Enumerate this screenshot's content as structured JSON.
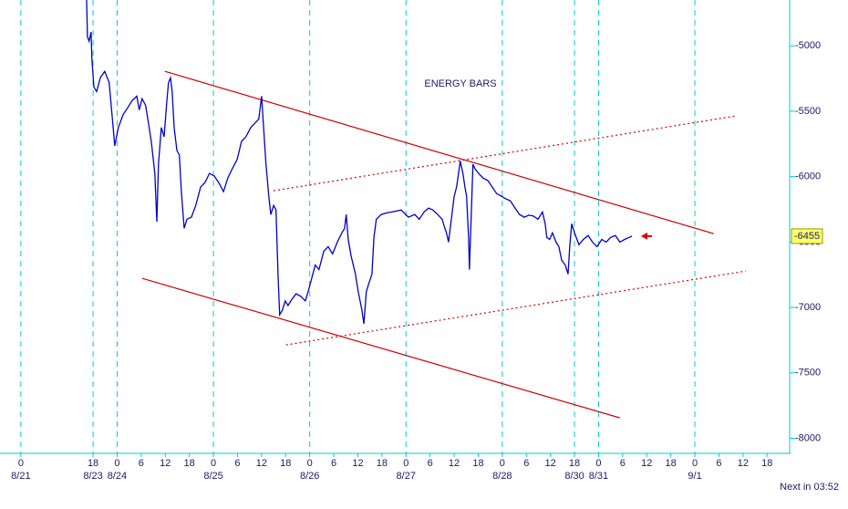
{
  "chart_data": {
    "type": "line",
    "title": "ENERGY BARS",
    "series": [
      {
        "color": "#0000cc",
        "x": [
          16.4,
          16.6,
          17.0,
          17.5,
          17.7,
          18.2,
          18.9,
          19.8,
          20.9,
          22.0,
          23.0,
          23.4,
          24.3,
          25.5,
          26.6,
          27.7,
          28.9,
          29.5,
          30.2,
          31.1,
          31.8,
          32.5,
          33.4,
          33.9,
          34.3,
          35.0,
          35.7,
          36.4,
          36.8,
          37.3,
          37.7,
          38.2,
          38.9,
          39.5,
          40.0,
          40.7,
          41.4,
          42.5,
          43.6,
          44.8,
          45.9,
          47.0,
          48.2,
          49.3,
          50.5,
          51.6,
          52.7,
          53.9,
          55.0,
          56.1,
          57.3,
          58.4,
          59.3,
          60.0,
          60.5,
          61.1,
          61.8,
          62.3,
          63.0,
          63.6,
          64.1,
          64.5,
          65.2,
          65.9,
          66.6,
          67.5,
          68.6,
          69.8,
          70.9,
          71.6,
          72.5,
          73.4,
          74.3,
          75.5,
          76.6,
          77.7,
          78.9,
          80.0,
          80.7,
          81.1,
          81.6,
          82.3,
          83.4,
          84.1,
          85.0,
          85.5,
          86.1,
          86.8,
          87.5,
          88.0,
          88.6,
          89.8,
          91.4,
          92.5,
          94.8,
          96.6,
          98.2,
          99.3,
          100.5,
          101.6,
          102.7,
          103.9,
          105.0,
          105.7,
          106.1,
          106.6,
          107.3,
          108.0,
          108.6,
          109.1,
          109.5,
          110.2,
          110.7,
          111.1,
          111.6,
          111.8,
          112.3,
          112.7,
          113.2,
          114.1,
          115.2,
          116.4,
          117.5,
          118.6,
          119.8,
          120.9,
          122.0,
          123.2,
          124.3,
          125.5,
          126.6,
          127.7,
          128.9,
          130.0,
          130.7,
          131.1,
          131.8,
          132.5,
          133.4,
          134.1,
          134.8,
          135.7,
          136.4,
          136.8,
          137.3,
          138.0,
          139.1,
          140.2,
          141.4,
          142.5,
          143.6,
          144.8,
          145.9,
          147.0,
          148.2,
          149.3,
          150.5,
          151.6,
          152.3
        ],
        "values": [
          -4650,
          -4930,
          -4965,
          -4895,
          -5105,
          -5315,
          -5350,
          -5245,
          -5195,
          -5280,
          -5625,
          -5765,
          -5625,
          -5525,
          -5475,
          -5420,
          -5385,
          -5490,
          -5405,
          -5455,
          -5590,
          -5730,
          -5975,
          -6345,
          -5905,
          -5625,
          -5695,
          -5420,
          -5280,
          -5245,
          -5350,
          -5625,
          -5800,
          -5835,
          -6115,
          -6395,
          -6325,
          -6310,
          -6220,
          -6080,
          -6045,
          -5975,
          -5995,
          -6045,
          -6115,
          -6010,
          -5940,
          -5870,
          -5730,
          -5695,
          -5625,
          -5590,
          -5560,
          -5385,
          -5625,
          -5905,
          -6150,
          -6290,
          -6220,
          -6255,
          -6745,
          -7055,
          -7020,
          -6950,
          -6985,
          -6940,
          -6895,
          -6915,
          -6950,
          -6880,
          -6775,
          -6675,
          -6710,
          -6570,
          -6535,
          -6590,
          -6500,
          -6430,
          -6395,
          -6290,
          -6480,
          -6605,
          -6745,
          -6880,
          -7020,
          -7125,
          -6880,
          -6810,
          -6745,
          -6465,
          -6325,
          -6290,
          -6275,
          -6270,
          -6255,
          -6310,
          -6290,
          -6325,
          -6270,
          -6240,
          -6255,
          -6290,
          -6325,
          -6395,
          -6430,
          -6500,
          -6325,
          -6150,
          -6080,
          -5975,
          -5880,
          -5975,
          -6080,
          -6150,
          -6465,
          -6710,
          -6255,
          -5905,
          -5940,
          -5975,
          -6010,
          -6030,
          -6080,
          -6130,
          -6150,
          -6170,
          -6185,
          -6240,
          -6290,
          -6310,
          -6295,
          -6300,
          -6325,
          -6270,
          -6360,
          -6465,
          -6480,
          -6430,
          -6500,
          -6535,
          -6640,
          -6675,
          -6745,
          -6535,
          -6360,
          -6430,
          -6520,
          -6480,
          -6450,
          -6500,
          -6535,
          -6480,
          -6500,
          -6465,
          -6450,
          -6500,
          -6480,
          -6465,
          -6455
        ]
      }
    ],
    "trendlines": [
      {
        "style": "solid",
        "color": "#cc0000",
        "x": [
          35.9,
          172.7
        ],
        "values": [
          -5195,
          -6436
        ]
      },
      {
        "style": "solid",
        "color": "#cc0000",
        "x": [
          30.2,
          149.3
        ],
        "values": [
          -6777,
          -7844
        ]
      },
      {
        "style": "dotted",
        "color": "#cc0000",
        "x": [
          63.0,
          178.0
        ],
        "values": [
          -6108,
          -5537
        ]
      },
      {
        "style": "dotted",
        "color": "#cc0000",
        "x": [
          66.1,
          180.7
        ],
        "values": [
          -7286,
          -6722
        ]
      }
    ],
    "last_price": -6455,
    "xlim": [
      -5.2,
      191.4
    ],
    "ylim": [
      -8115,
      -4650
    ],
    "yticks": [
      -5000,
      -5500,
      -6000,
      -6500,
      -7000,
      -7500,
      -8000
    ],
    "xticks": [
      0,
      {
        "value": 18,
        "label": "18"
      },
      {
        "value": 24,
        "label": "0"
      },
      {
        "value": 30,
        "label": "6"
      },
      {
        "value": 36,
        "label": "12"
      },
      {
        "value": 42,
        "label": "18"
      },
      {
        "value": 48,
        "label": "0"
      },
      {
        "value": 54,
        "label": "6"
      },
      {
        "value": 60,
        "label": "12"
      },
      {
        "value": 66,
        "label": "18"
      },
      {
        "value": 72,
        "label": "0"
      },
      {
        "value": 78,
        "label": "6"
      },
      {
        "value": 84,
        "label": "12"
      },
      {
        "value": 90,
        "label": "18"
      },
      {
        "value": 96,
        "label": "0"
      },
      {
        "value": 102,
        "label": "6"
      },
      {
        "value": 108,
        "label": "12"
      },
      {
        "value": 114,
        "label": "18"
      },
      {
        "value": 120,
        "label": "0"
      },
      {
        "value": 126,
        "label": "6"
      },
      {
        "value": 132,
        "label": "12"
      },
      {
        "value": 138,
        "label": "18"
      },
      {
        "value": 144,
        "label": "0"
      },
      {
        "value": 150,
        "label": "6"
      },
      {
        "value": 156,
        "label": "12"
      },
      {
        "value": 162,
        "label": "18"
      },
      {
        "value": 168,
        "label": "0"
      },
      {
        "value": 174,
        "label": "6"
      },
      {
        "value": 180,
        "label": "12"
      },
      {
        "value": 186,
        "label": "18"
      }
    ],
    "date_ticks": [
      {
        "value": 0,
        "label": "8/21"
      },
      {
        "value": 18,
        "label": "8/23"
      },
      {
        "value": 24,
        "label": "8/24"
      },
      {
        "value": 48,
        "label": "8/25"
      },
      {
        "value": 72,
        "label": "8/26"
      },
      {
        "value": 96,
        "label": "8/27"
      },
      {
        "value": 120,
        "label": "8/28"
      },
      {
        "value": 138,
        "label": "8/30"
      },
      {
        "value": 144,
        "label": "8/31"
      },
      {
        "value": 168,
        "label": "9/1"
      }
    ],
    "footer": "Next in 03:52"
  }
}
